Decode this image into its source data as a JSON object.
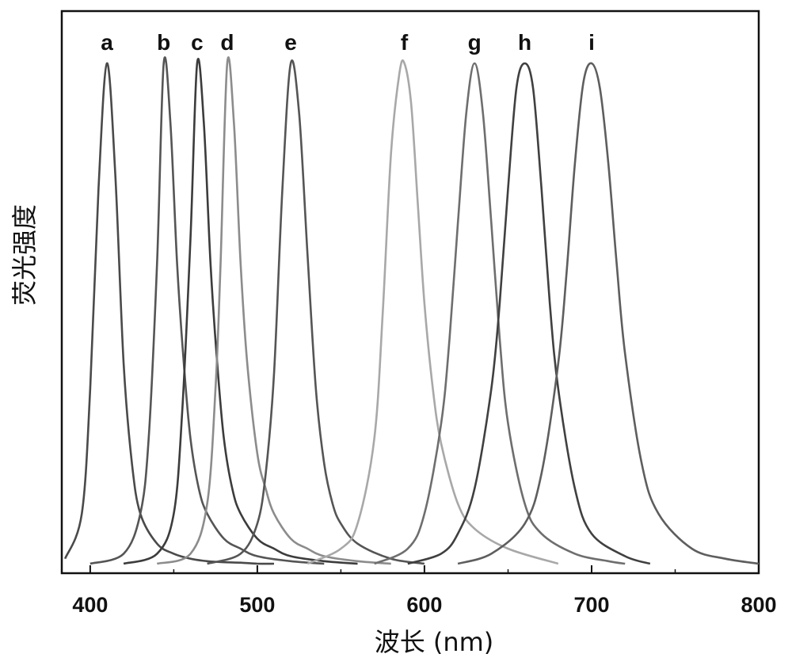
{
  "chart_data": {
    "type": "line",
    "title": "",
    "xlabel": "波长 (nm)",
    "ylabel": "荧光强度",
    "xlim": [
      383,
      800
    ],
    "ylim": [
      0,
      1.06
    ],
    "xticks": [
      400,
      500,
      600,
      700,
      800
    ],
    "x_tick_labels": [
      "400",
      "500",
      "600",
      "700",
      "800"
    ],
    "y_tick_labels_shown": false,
    "grid": false,
    "legend": "none",
    "series": [
      {
        "name": "a",
        "color": "#4a4a4a",
        "x": [
          385,
          395,
          400,
          405,
          410,
          415,
          420,
          425,
          430,
          440,
          450,
          460,
          470,
          480,
          490,
          500,
          510
        ],
        "y": [
          0.01,
          0.1,
          0.35,
          0.75,
          1.0,
          0.78,
          0.4,
          0.2,
          0.1,
          0.04,
          0.02,
          0.01,
          0.005,
          0.003,
          0.002,
          0.0,
          0.0
        ]
      },
      {
        "name": "b",
        "color": "#555555",
        "x": [
          400,
          420,
          430,
          435,
          440,
          444,
          448,
          452,
          456,
          460,
          465,
          470,
          480,
          490,
          500,
          520,
          540
        ],
        "y": [
          0.0,
          0.02,
          0.1,
          0.25,
          0.6,
          1.0,
          0.88,
          0.6,
          0.4,
          0.25,
          0.15,
          0.1,
          0.05,
          0.03,
          0.015,
          0.005,
          0.0
        ]
      },
      {
        "name": "c",
        "color": "#3c3c3c",
        "x": [
          420,
          440,
          450,
          455,
          460,
          464,
          468,
          472,
          476,
          480,
          485,
          490,
          500,
          510,
          520,
          540,
          560
        ],
        "y": [
          0.0,
          0.02,
          0.1,
          0.3,
          0.65,
          1.0,
          0.88,
          0.6,
          0.4,
          0.25,
          0.15,
          0.1,
          0.05,
          0.03,
          0.015,
          0.005,
          0.0
        ]
      },
      {
        "name": "d",
        "color": "#8c8c8c",
        "x": [
          440,
          460,
          470,
          475,
          478,
          482,
          486,
          490,
          494,
          500,
          505,
          510,
          520,
          530,
          540,
          560,
          580
        ],
        "y": [
          0.0,
          0.02,
          0.12,
          0.35,
          0.6,
          1.0,
          0.88,
          0.6,
          0.4,
          0.22,
          0.15,
          0.1,
          0.05,
          0.03,
          0.015,
          0.005,
          0.0
        ]
      },
      {
        "name": "e",
        "color": "#555555",
        "x": [
          470,
          490,
          500,
          505,
          510,
          515,
          520,
          525,
          530,
          535,
          540,
          545,
          550,
          560,
          580,
          600
        ],
        "y": [
          0.0,
          0.02,
          0.08,
          0.18,
          0.38,
          0.75,
          1.0,
          0.9,
          0.62,
          0.35,
          0.2,
          0.12,
          0.08,
          0.04,
          0.01,
          0.0
        ]
      },
      {
        "name": "f",
        "color": "#a8a8a8",
        "x": [
          530,
          550,
          560,
          570,
          575,
          580,
          585,
          588,
          592,
          596,
          600,
          605,
          610,
          620,
          630,
          650,
          680
        ],
        "y": [
          0.0,
          0.03,
          0.08,
          0.25,
          0.5,
          0.82,
          0.98,
          1.0,
          0.92,
          0.72,
          0.52,
          0.35,
          0.24,
          0.12,
          0.07,
          0.03,
          0.0
        ]
      },
      {
        "name": "g",
        "color": "#6e6e6e",
        "x": [
          570,
          590,
          600,
          610,
          615,
          620,
          625,
          630,
          635,
          640,
          645,
          650,
          660,
          670,
          690,
          710,
          720
        ],
        "y": [
          0.0,
          0.03,
          0.1,
          0.28,
          0.45,
          0.68,
          0.9,
          1.0,
          0.9,
          0.68,
          0.45,
          0.28,
          0.12,
          0.06,
          0.02,
          0.005,
          0.0
        ]
      },
      {
        "name": "h",
        "color": "#404040",
        "x": [
          590,
          610,
          620,
          630,
          640,
          645,
          650,
          655,
          660,
          665,
          670,
          675,
          680,
          690,
          700,
          720,
          735
        ],
        "y": [
          0.0,
          0.02,
          0.06,
          0.15,
          0.35,
          0.52,
          0.75,
          0.95,
          1.0,
          0.95,
          0.75,
          0.52,
          0.35,
          0.15,
          0.06,
          0.015,
          0.0
        ]
      },
      {
        "name": "i",
        "color": "#5e5e5e",
        "x": [
          620,
          640,
          660,
          670,
          680,
          685,
          690,
          695,
          700,
          705,
          710,
          715,
          720,
          730,
          740,
          760,
          780,
          800
        ],
        "y": [
          0.0,
          0.02,
          0.08,
          0.18,
          0.4,
          0.58,
          0.8,
          0.96,
          1.0,
          0.95,
          0.8,
          0.6,
          0.42,
          0.2,
          0.1,
          0.03,
          0.01,
          0.0
        ]
      }
    ]
  }
}
